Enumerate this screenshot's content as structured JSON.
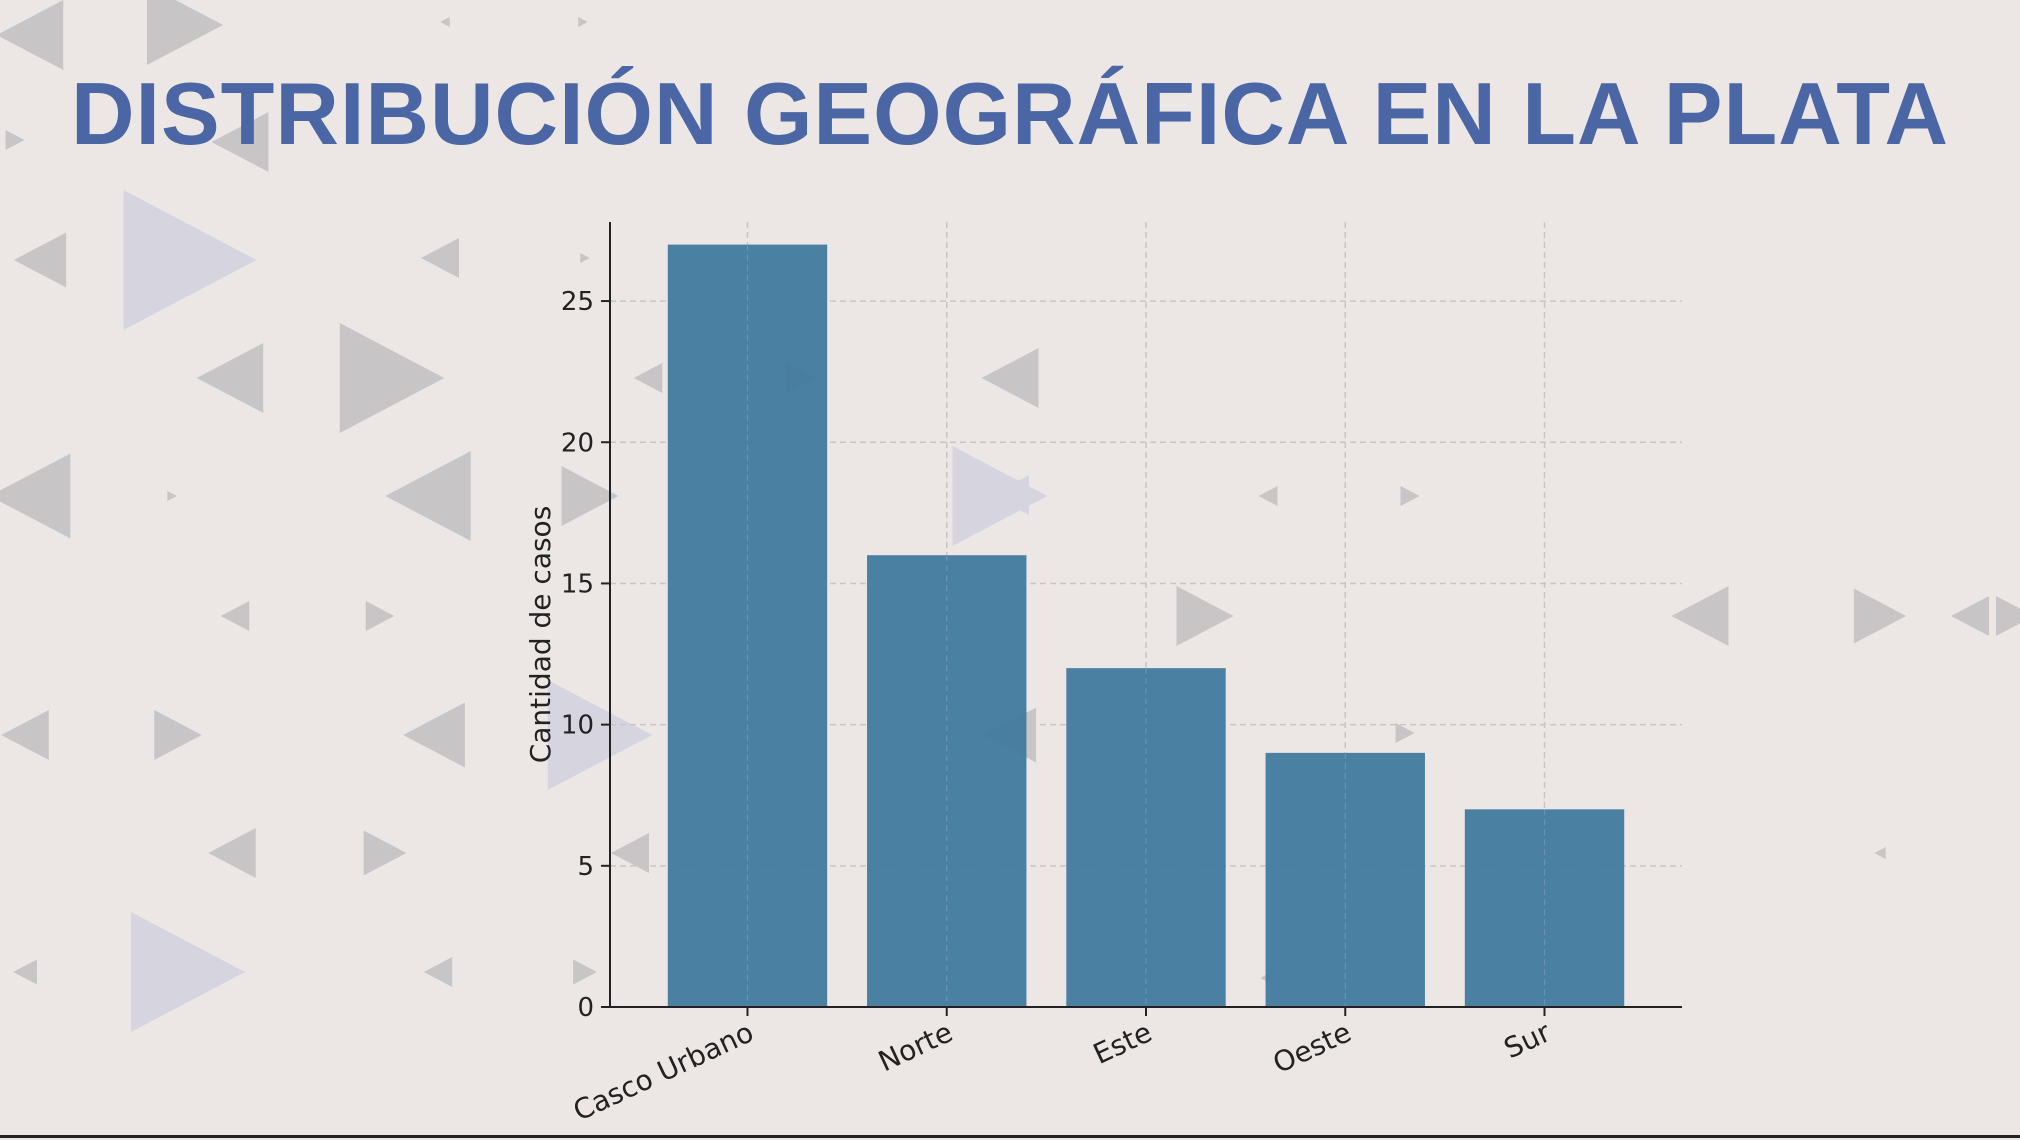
{
  "slide": {
    "title": "DISTRIBUCIÓN GEOGRÁFICA EN LA PLATA"
  },
  "colors": {
    "title": "#4b66a4",
    "bar": "#447c9f",
    "background": "#ece7e5",
    "axis": "#222222",
    "grid": "#c9c5c4"
  },
  "chart_data": {
    "type": "bar",
    "title": "",
    "xlabel": "",
    "ylabel": "Cantidad de casos",
    "categories": [
      "Casco Urbano",
      "Norte",
      "Este",
      "Oeste",
      "Sur"
    ],
    "values": [
      27,
      16,
      12,
      9,
      7
    ],
    "ylim": [
      0,
      27.8
    ],
    "yticks": [
      0,
      5,
      10,
      15,
      20,
      25
    ],
    "grid": true,
    "legend": "none"
  }
}
